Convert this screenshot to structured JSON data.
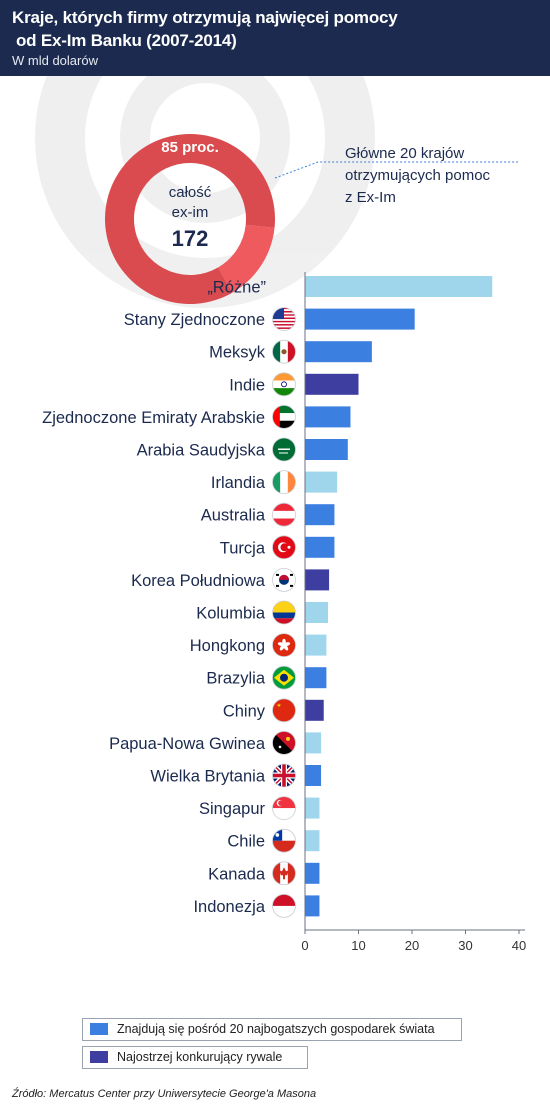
{
  "header": {
    "title_line1": "Kraje, których firmy otrzymują najwięcej pomocy",
    "title_line2": "od Ex-Im Banku (2007-2014)",
    "subtitle": "W mld dolarów"
  },
  "donut": {
    "share_label": "85 proc.",
    "share": 0.85,
    "center_line1": "całość",
    "center_line2": "ex-im",
    "center_value": "172",
    "annotation": [
      "Główne 20 krajów",
      "otrzymujących pomoc",
      "z Ex-Im"
    ],
    "colors": {
      "main": "#d94b4f",
      "rest": "#ee5a5e"
    }
  },
  "legend": [
    {
      "label": "Znajdują się pośród 20 najbogatszych gospodarek świata",
      "color": "#3b7fe0"
    },
    {
      "label": "Najostrzej konkurujący rywale",
      "color": "#3e3da0"
    }
  ],
  "source": "Źródło: Mercatus Center przy Uniwersytecie George'a Masona",
  "colors": {
    "light": "#9fd6ec",
    "blue": "#3b7fe0",
    "dark": "#3e3da0"
  },
  "chart_data": {
    "type": "bar",
    "orientation": "horizontal",
    "xlim": [
      0,
      40
    ],
    "xticks": [
      0,
      10,
      20,
      30,
      40
    ],
    "categories": [
      "„Różne”",
      "Stany Zjednoczone",
      "Meksyk",
      "Indie",
      "Zjednoczone Emiraty Arabskie",
      "Arabia Saudyjska",
      "Irlandia",
      "Australia",
      "Turcja",
      "Korea Południowa",
      "Kolumbia",
      "Hongkong",
      "Brazylia",
      "Chiny",
      "Papua-Nowa Gwinea",
      "Wielka Brytania",
      "Singapur",
      "Chile",
      "Kanada",
      "Indonezja"
    ],
    "values": [
      35,
      20.5,
      12.5,
      10,
      8.5,
      8,
      6,
      5.5,
      5.5,
      4.5,
      4.3,
      4,
      4,
      3.5,
      3,
      3,
      2.7,
      2.7,
      2.7,
      2.7
    ],
    "groups": [
      "other",
      "top20",
      "top20",
      "rival",
      "top20",
      "top20",
      "other",
      "top20",
      "top20",
      "rival",
      "other",
      "other",
      "top20",
      "rival",
      "other",
      "top20",
      "other",
      "other",
      "top20",
      "top20"
    ],
    "flags": [
      "none",
      "us",
      "mx",
      "in",
      "ae",
      "sa",
      "ie",
      "at",
      "tr",
      "kr",
      "co",
      "hk",
      "br",
      "cn",
      "pg",
      "gb",
      "sg",
      "cl",
      "ca",
      "id"
    ]
  }
}
